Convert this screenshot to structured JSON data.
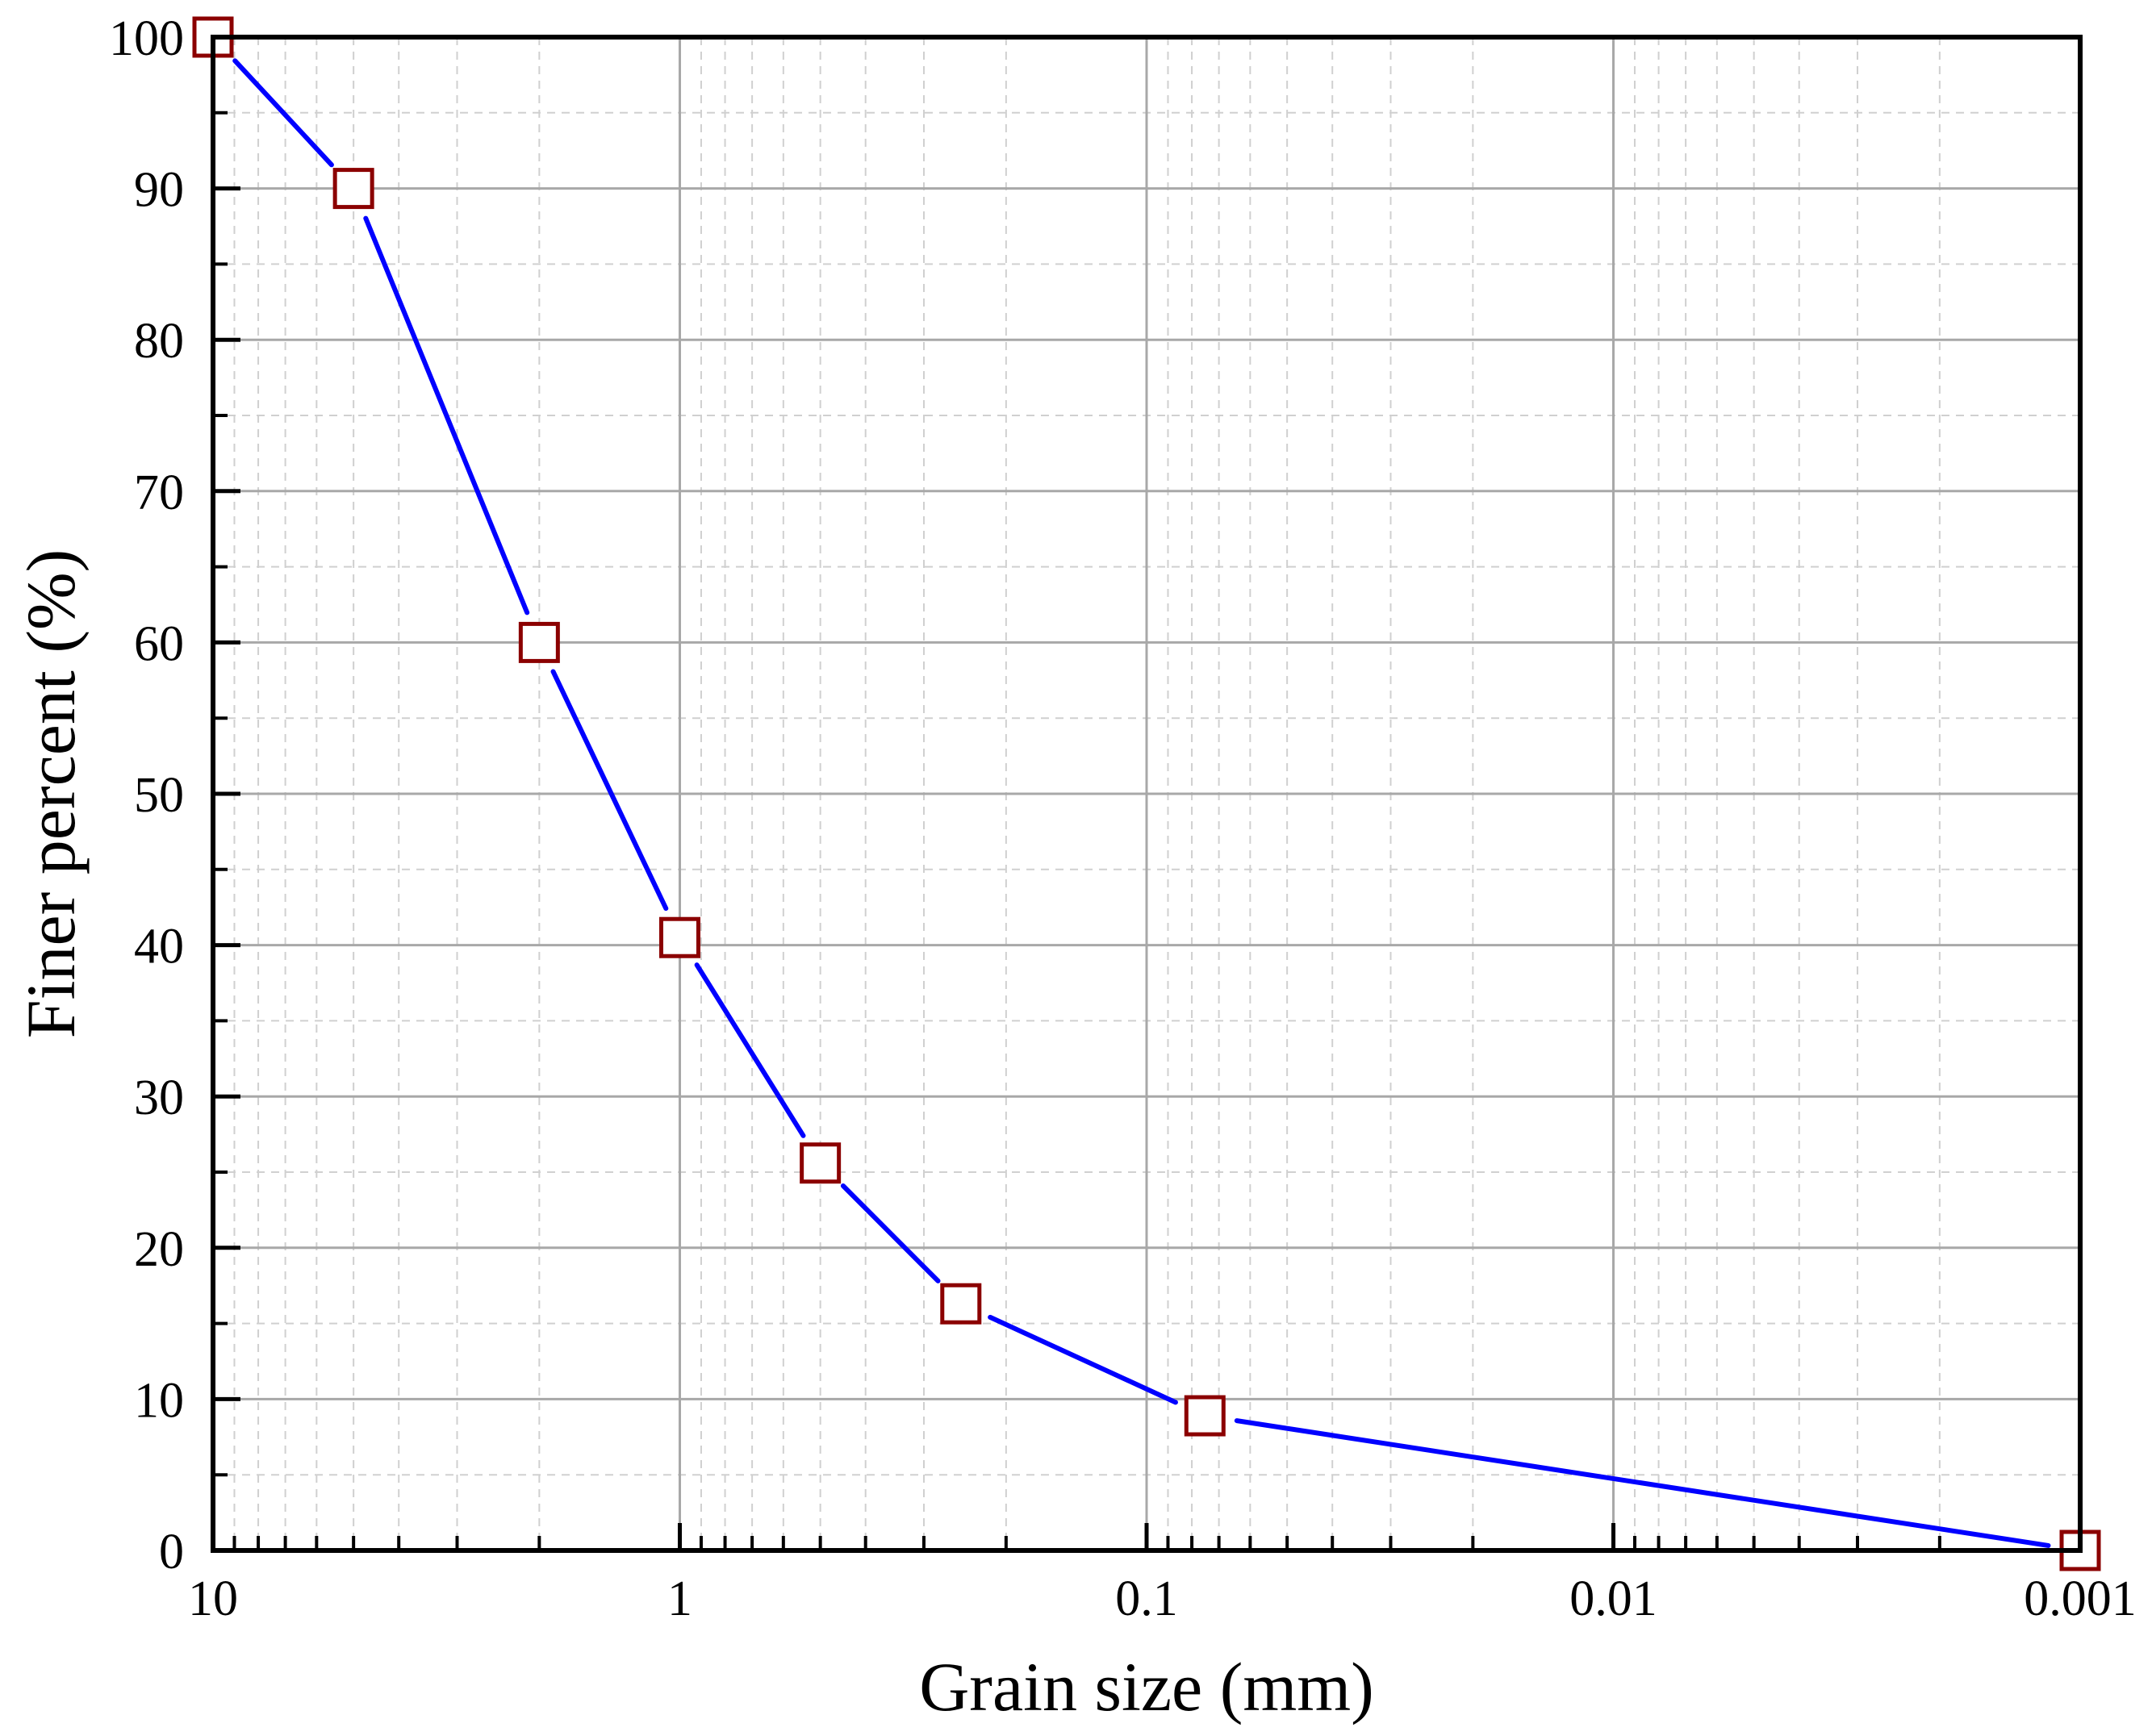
{
  "chart_data": {
    "type": "line",
    "xlabel": "Grain size (mm)",
    "ylabel": "Finer percent (%)",
    "x_scale": "log",
    "x_reversed": true,
    "xlim": [
      10,
      0.001
    ],
    "ylim": [
      0,
      100
    ],
    "x_ticks": [
      10,
      1,
      0.1,
      0.01,
      0.001
    ],
    "x_tick_labels": [
      "10",
      "1",
      "0.1",
      "0.01",
      "0.001"
    ],
    "y_ticks": [
      0,
      10,
      20,
      30,
      40,
      50,
      60,
      70,
      80,
      90,
      100
    ],
    "y_tick_labels": [
      "0",
      "10",
      "20",
      "30",
      "40",
      "50",
      "60",
      "70",
      "80",
      "90",
      "100"
    ],
    "grid": true,
    "series": [
      {
        "line_color": "#0000ff",
        "marker": "square",
        "marker_color": "#8b0000",
        "x": [
          10,
          5,
          2,
          1,
          0.5,
          0.25,
          0.075,
          0.001
        ],
        "y": [
          100,
          90,
          60,
          40.5,
          25.6,
          16.3,
          8.9,
          0
        ]
      }
    ]
  }
}
